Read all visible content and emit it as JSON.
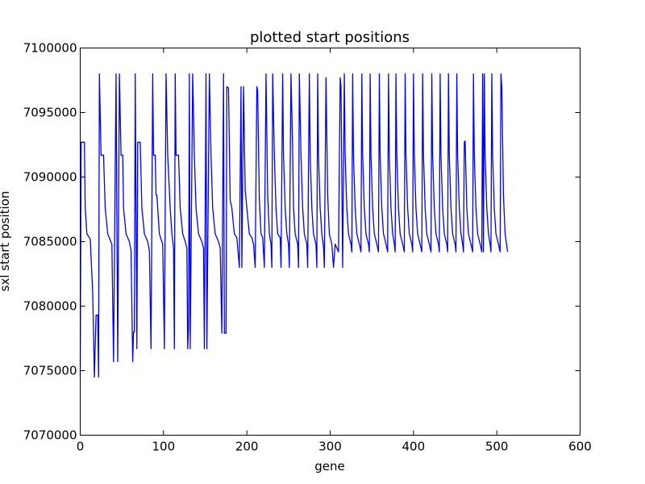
{
  "chart_data": {
    "type": "line",
    "title": "plotted start positions",
    "x_label": "gene",
    "y_label": "sxl start position",
    "color": "#0000ff",
    "x": [
      0,
      1,
      5,
      6,
      8,
      12,
      15,
      17,
      19,
      21,
      22,
      23,
      25,
      28,
      30,
      33,
      38,
      40,
      43,
      45,
      47,
      49,
      51,
      52,
      55,
      59,
      61,
      63,
      64,
      65,
      66,
      68,
      69,
      72,
      74,
      77,
      81,
      83,
      85,
      87,
      88,
      90,
      91,
      92,
      95,
      99,
      101,
      103,
      105,
      108,
      110,
      112,
      113,
      114,
      115,
      118,
      120,
      123,
      126,
      128,
      129,
      130,
      131,
      132,
      135,
      137,
      139,
      142,
      146,
      148,
      149,
      151,
      152,
      155,
      157,
      159,
      162,
      166,
      168,
      170,
      172,
      173,
      175,
      176,
      178,
      180,
      182,
      185,
      188,
      191,
      193,
      194,
      196,
      198,
      200,
      203,
      206,
      208,
      210,
      212,
      213,
      215,
      217,
      219,
      221,
      223,
      225,
      227,
      229,
      230,
      231,
      233,
      235,
      237,
      240,
      241,
      243,
      244,
      246,
      248,
      250,
      251,
      253,
      255,
      256,
      258,
      261,
      262,
      263,
      265,
      267,
      269,
      272,
      273,
      275,
      276,
      278,
      280,
      283,
      284,
      285,
      286,
      288,
      290,
      292,
      293,
      295,
      297,
      299,
      302,
      304,
      306,
      310,
      312,
      313,
      315,
      317,
      318,
      320,
      322,
      325,
      326,
      327,
      328,
      330,
      332,
      335,
      337,
      338,
      339,
      341,
      343,
      346,
      347,
      348,
      349,
      351,
      353,
      356,
      358,
      359,
      360,
      362,
      364,
      367,
      369,
      370,
      371,
      373,
      375,
      377,
      378,
      379,
      380,
      382,
      384,
      387,
      389,
      390,
      391,
      393,
      395,
      398,
      399,
      400,
      401,
      403,
      405,
      408,
      410,
      411,
      412,
      414,
      416,
      419,
      421,
      422,
      423,
      425,
      427,
      430,
      431,
      432,
      433,
      435,
      437,
      440,
      441,
      442,
      443,
      445,
      447,
      450,
      451,
      452,
      453,
      455,
      457,
      459,
      460,
      461,
      462,
      464,
      466,
      469,
      471,
      472,
      473,
      475,
      477,
      480,
      482,
      483,
      484,
      485,
      486,
      488,
      490,
      492,
      493,
      494,
      495,
      497,
      499,
      502,
      504,
      505,
      506,
      508,
      510,
      513
    ],
    "values": [
      7074500,
      7092700,
      7092700,
      7087600,
      7085600,
      7085200,
      7081000,
      7074500,
      7079300,
      7079300,
      7074500,
      7098000,
      7091700,
      7091700,
      7087600,
      7085600,
      7084800,
      7075700,
      7098000,
      7075700,
      7098000,
      7091700,
      7091700,
      7087600,
      7085600,
      7085000,
      7084300,
      7075700,
      7078000,
      7078000,
      7098000,
      7076700,
      7092700,
      7092700,
      7087600,
      7085600,
      7085000,
      7084300,
      7076700,
      7098000,
      7091700,
      7091700,
      7088600,
      7088600,
      7085600,
      7084800,
      7076700,
      7098000,
      7091700,
      7087600,
      7085600,
      7084500,
      7076700,
      7098000,
      7091700,
      7091700,
      7087600,
      7085600,
      7085000,
      7084500,
      7076700,
      7078300,
      7098000,
      7076700,
      7098000,
      7091700,
      7087600,
      7085600,
      7085000,
      7084500,
      7076700,
      7098000,
      7076700,
      7098000,
      7091700,
      7087600,
      7085600,
      7085000,
      7084500,
      7077900,
      7098000,
      7077900,
      7077900,
      7097000,
      7096900,
      7088200,
      7087600,
      7085600,
      7085300,
      7083000,
      7097000,
      7083000,
      7097000,
      7089000,
      7087600,
      7085600,
      7085300,
      7084800,
      7083000,
      7097000,
      7096700,
      7088200,
      7085600,
      7085300,
      7083000,
      7098000,
      7088600,
      7085600,
      7084800,
      7083000,
      7098000,
      7091700,
      7087600,
      7085600,
      7085300,
      7083000,
      7098000,
      7091700,
      7087600,
      7085600,
      7084800,
      7083000,
      7098000,
      7092000,
      7087600,
      7085600,
      7084800,
      7083000,
      7098000,
      7091700,
      7087600,
      7085600,
      7084800,
      7083000,
      7098000,
      7091700,
      7087600,
      7085600,
      7084800,
      7083000,
      7098000,
      7091700,
      7087600,
      7085600,
      7084600,
      7083000,
      7097700,
      7088600,
      7085600,
      7084800,
      7083000,
      7084800,
      7084200,
      7097700,
      7097000,
      7083000,
      7098000,
      7091700,
      7087600,
      7085600,
      7084800,
      7084200,
      7098000,
      7091700,
      7087600,
      7085600,
      7084800,
      7084200,
      7098000,
      7091700,
      7087600,
      7085600,
      7084800,
      7084200,
      7098000,
      7091700,
      7087600,
      7085600,
      7084800,
      7084200,
      7098000,
      7091700,
      7087600,
      7085600,
      7084800,
      7084200,
      7098000,
      7091700,
      7087600,
      7085600,
      7084800,
      7084200,
      7098000,
      7091700,
      7087600,
      7085600,
      7084800,
      7084200,
      7098000,
      7091700,
      7087600,
      7085600,
      7084800,
      7084200,
      7098000,
      7091700,
      7087600,
      7085600,
      7084800,
      7084200,
      7098000,
      7091700,
      7087600,
      7085600,
      7084800,
      7084200,
      7098000,
      7091700,
      7087600,
      7085600,
      7084800,
      7084200,
      7098000,
      7091700,
      7087600,
      7085600,
      7084800,
      7084200,
      7098000,
      7091700,
      7087600,
      7085600,
      7084800,
      7084200,
      7098000,
      7091700,
      7087600,
      7085600,
      7084800,
      7084200,
      7092700,
      7092800,
      7087600,
      7085600,
      7084800,
      7084200,
      7098000,
      7091700,
      7087600,
      7085600,
      7084800,
      7084200,
      7098000,
      7084200,
      7098000,
      7091700,
      7087600,
      7085600,
      7084800,
      7084200,
      7098000,
      7091700,
      7087600,
      7085600,
      7084800,
      7084200,
      7098000,
      7097000,
      7088600,
      7085600,
      7084200
    ],
    "xlim": [
      0,
      600
    ],
    "xticks": [
      0,
      100,
      200,
      300,
      400,
      500,
      600
    ],
    "ylim": [
      7070000,
      7100000
    ],
    "yticks": [
      7070000,
      7075000,
      7080000,
      7085000,
      7090000,
      7095000,
      7100000
    ]
  }
}
